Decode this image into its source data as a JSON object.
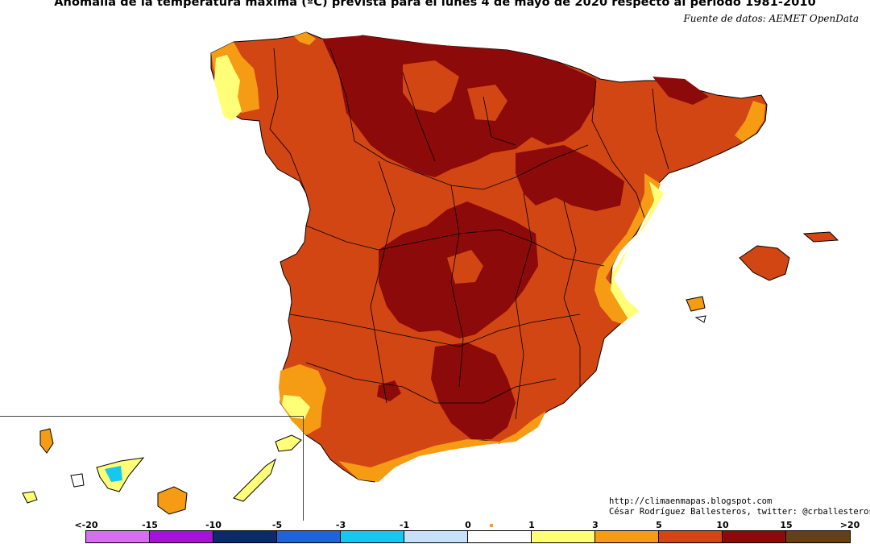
{
  "title": "Anomalía de la temperatura máxima (ºC) prevista para el lunes 4 de mayo de 2020 respecto al periodo 1981-2010",
  "source": "Fuente de datos: AEMET OpenData",
  "credits": {
    "url": "http://climaenmapas.blogspot.com",
    "author": "César Rodríguez Ballesteros, twitter: @crballesteros"
  },
  "legend": {
    "ticks": [
      "<-20",
      "-15",
      "-10",
      "-5",
      "-3",
      "-1",
      "0",
      "1",
      "3",
      "5",
      "10",
      "15",
      ">20"
    ],
    "colors": [
      "#d76ef0",
      "#a514d6",
      "#0a2a6a",
      "#1e64d6",
      "#14c8f0",
      "#c8e1fa",
      "#ffffff",
      "#ffff78",
      "#f59b14",
      "#d24614",
      "#8c0a0a",
      "#644014"
    ]
  },
  "palette": {
    "yellow": "#ffff78",
    "orange": "#f59b14",
    "red_orange": "#d24614",
    "dark_red": "#8c0a0a",
    "blue": "#14c8f0",
    "light_blue": "#c8e1fa"
  }
}
